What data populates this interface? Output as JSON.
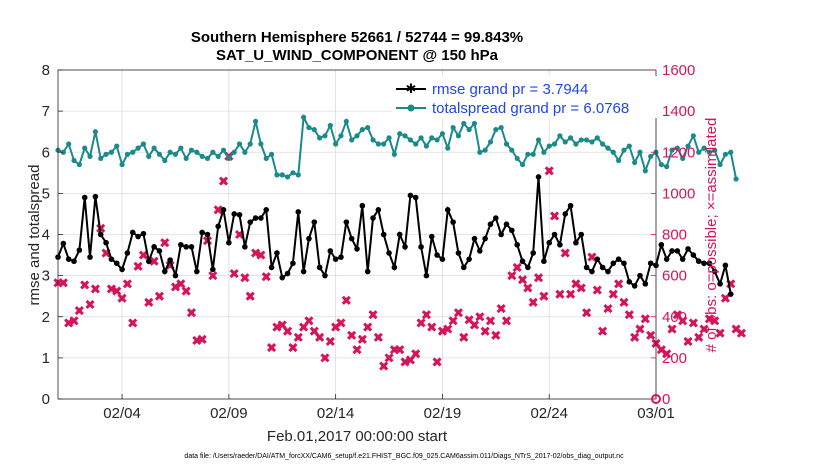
{
  "chart_data": {
    "type": "line",
    "title": "Southern Hemisphere 52661 / 52744 = 99.843%",
    "subtitle": "SAT_U_WIND_COMPONENT @ 150 hPa",
    "xlabel": "Feb.01,2017 00:00:00 start",
    "ylabel": "rmse and totalspread",
    "y2label": "# of obs: o=possible; ×=assimilated",
    "footnote": "data file: /Users/raeder/DAI/ATM_forcXX/CAM6_setup/f.e21.FHIST_BGC.f09_025.CAM6assim.011/Diags_NTrS_2017-02/obs_diag_output.nc",
    "x_ticks": [
      {
        "label": "02/04",
        "day": 3
      },
      {
        "label": "02/09",
        "day": 8
      },
      {
        "label": "02/14",
        "day": 13
      },
      {
        "label": "02/19",
        "day": 18
      },
      {
        "label": "02/24",
        "day": 23
      },
      {
        "label": "03/01",
        "day": 28
      }
    ],
    "xlim": [
      0,
      28
    ],
    "ylim": [
      0,
      8
    ],
    "y_ticks": [
      "0",
      "1",
      "2",
      "3",
      "4",
      "5",
      "6",
      "7",
      "8"
    ],
    "y2lim": [
      0,
      1600
    ],
    "y2_ticks": [
      "0",
      "200",
      "400",
      "600",
      "800",
      "1000",
      "1200",
      "1400",
      "1600"
    ],
    "grid": true,
    "legend_position": "top-right",
    "x_step_days": 0.25,
    "series": [
      {
        "name": "rmse grand pr = 3.7944",
        "axis": "left",
        "color": "#000000",
        "marker": "star",
        "values": [
          3.45,
          3.78,
          3.4,
          3.35,
          3.62,
          4.9,
          3.45,
          4.92,
          4.0,
          3.8,
          3.4,
          3.3,
          3.15,
          3.55,
          4.05,
          3.95,
          4.02,
          3.35,
          3.7,
          3.6,
          3.1,
          3.38,
          3.0,
          3.75,
          3.7,
          3.7,
          3.1,
          4.05,
          4.0,
          3.15,
          4.2,
          4.6,
          3.8,
          4.5,
          4.48,
          3.7,
          4.3,
          4.4,
          4.4,
          4.6,
          3.2,
          3.55,
          2.95,
          3.05,
          3.3,
          4.55,
          3.1,
          3.9,
          4.3,
          3.2,
          3.0,
          3.6,
          3.4,
          3.45,
          4.3,
          3.9,
          3.65,
          4.7,
          3.1,
          4.4,
          4.6,
          4.0,
          3.55,
          3.2,
          4.0,
          3.7,
          4.95,
          4.9,
          3.7,
          3.0,
          3.95,
          3.5,
          3.4,
          4.6,
          4.3,
          3.55,
          3.2,
          3.4,
          3.9,
          3.6,
          3.9,
          4.25,
          4.4,
          4.0,
          4.25,
          4.1,
          3.75,
          3.35,
          3.2,
          3.55,
          5.4,
          3.35,
          3.8,
          4.0,
          3.75,
          4.5,
          4.7,
          3.8,
          4.0,
          3.2,
          3.1,
          3.4,
          3.2,
          3.1,
          3.3,
          3.4,
          3.3,
          2.85,
          2.75,
          3.0,
          2.8,
          3.3,
          3.25,
          3.75,
          3.4,
          3.6,
          3.6,
          3.4,
          3.65,
          3.5,
          3.35,
          3.3,
          3.3,
          3.1,
          2.8,
          3.25,
          2.55
        ]
      },
      {
        "name": "totalspread grand pr = 6.0768",
        "axis": "left",
        "color": "#1a8a8a",
        "marker": "circle",
        "values": [
          6.05,
          6.0,
          6.2,
          5.8,
          5.7,
          6.1,
          5.9,
          6.5,
          5.85,
          5.95,
          6.0,
          6.15,
          5.7,
          5.95,
          6.0,
          6.1,
          6.2,
          5.9,
          6.1,
          5.95,
          5.8,
          6.0,
          5.95,
          6.1,
          5.85,
          6.05,
          6.0,
          5.9,
          5.85,
          6.0,
          5.9,
          6.05,
          5.85,
          6.0,
          6.2,
          6.0,
          6.2,
          6.75,
          6.2,
          5.85,
          5.95,
          5.45,
          5.45,
          5.4,
          5.5,
          5.45,
          6.85,
          6.6,
          6.55,
          6.35,
          6.4,
          6.65,
          6.2,
          6.4,
          6.75,
          6.3,
          6.4,
          6.55,
          6.6,
          6.3,
          6.2,
          6.2,
          6.35,
          5.95,
          6.45,
          6.4,
          6.3,
          6.2,
          6.35,
          6.15,
          6.35,
          6.3,
          6.45,
          6.1,
          6.6,
          6.4,
          6.7,
          6.55,
          6.7,
          6.0,
          6.05,
          6.25,
          6.55,
          6.6,
          6.2,
          6.05,
          5.85,
          5.7,
          5.95,
          5.95,
          6.3,
          6.0,
          6.15,
          6.2,
          6.4,
          6.25,
          6.35,
          6.2,
          6.3,
          6.3,
          6.25,
          6.35,
          6.2,
          6.1,
          6.0,
          5.8,
          6.05,
          6.15,
          5.75,
          6.0,
          5.55,
          5.9,
          6.0,
          5.7,
          5.65,
          6.05,
          6.1,
          5.85,
          6.15,
          6.4,
          6.0,
          6.1,
          6.0,
          6.05,
          5.7,
          5.95,
          6.0,
          5.35
        ]
      },
      {
        "name": "# of obs assimilated",
        "axis": "right",
        "color": "#d6145a",
        "marker": "x",
        "values": [
          565,
          565,
          370,
          380,
          430,
          555,
          460,
          535,
          830,
          710,
          535,
          525,
          490,
          560,
          370,
          645,
          700,
          470,
          670,
          500,
          760,
          650,
          545,
          560,
          525,
          420,
          285,
          290,
          770,
          600,
          920,
          1060,
          1180,
          610,
          800,
          590,
          500,
          710,
          700,
          595,
          250,
          350,
          360,
          330,
          250,
          300,
          350,
          380,
          330,
          300,
          200,
          280,
          350,
          370,
          480,
          310,
          240,
          290,
          350,
          410,
          300,
          160,
          200,
          240,
          240,
          180,
          190,
          220,
          370,
          410,
          350,
          180,
          330,
          340,
          380,
          420,
          300,
          385,
          360,
          400,
          330,
          380,
          310,
          440,
          380,
          600,
          640,
          580,
          540,
          470,
          590,
          500,
          1110,
          890,
          510,
          710,
          510,
          560,
          540,
          420,
          690,
          530,
          330,
          440,
          510,
          560,
          470,
          410,
          300,
          340,
          390,
          310,
          270,
          240,
          220,
          340,
          410,
          380,
          280,
          370,
          300,
          340,
          390,
          380,
          320,
          490,
          560,
          340,
          320
        ]
      }
    ]
  }
}
